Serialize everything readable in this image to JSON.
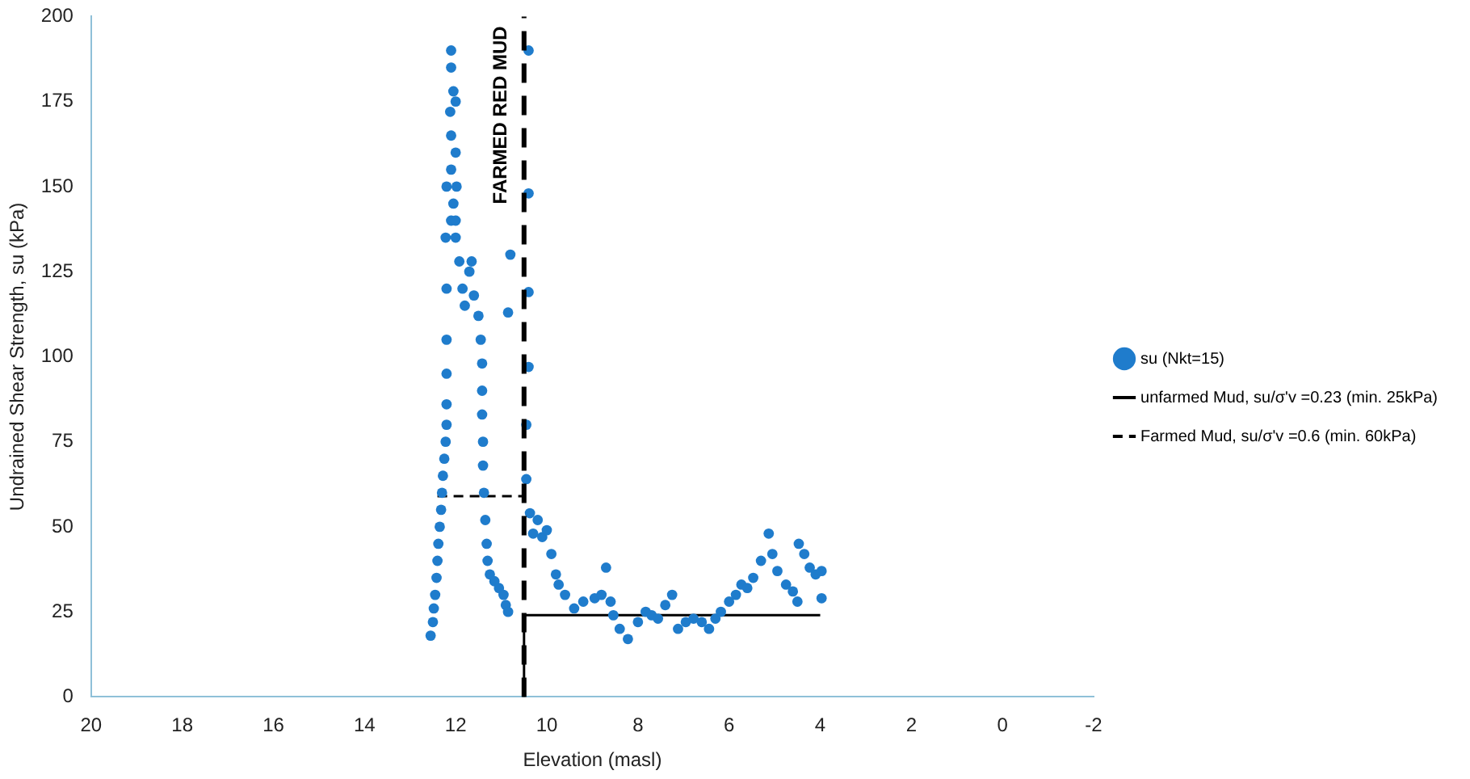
{
  "chart_data": {
    "type": "scatter",
    "xlabel": "Elevation (masl)",
    "ylabel": "Undrained Shear Strength, su (kPa)",
    "xlim": [
      20,
      -2
    ],
    "xticks": [
      20,
      18,
      16,
      14,
      12,
      10,
      8,
      6,
      4,
      2,
      0,
      -2
    ],
    "ylim": [
      0,
      200
    ],
    "yticks": [
      0,
      25,
      50,
      75,
      100,
      125,
      150,
      175,
      200
    ],
    "grid": false,
    "legend": "right",
    "marker": "circle",
    "series": [
      {
        "name": "su (Nkt=15)",
        "color": "#1f7ccc",
        "x": [
          12.55,
          12.5,
          12.48,
          12.45,
          12.42,
          12.4,
          12.38,
          12.35,
          12.32,
          12.3,
          12.28,
          12.25,
          12.22,
          12.2,
          12.2,
          12.2,
          12.2,
          12.2,
          12.22,
          12.2,
          12.1,
          12.05,
          12.1,
          12.1,
          12.12,
          12.05,
          12.1,
          12.1,
          12.0,
          12.0,
          11.98,
          12.0,
          12.0,
          11.92,
          11.85,
          11.8,
          11.7,
          11.65,
          11.6,
          11.5,
          11.45,
          11.42,
          11.42,
          11.42,
          11.4,
          11.4,
          11.38,
          11.35,
          11.32,
          11.3,
          11.25,
          11.15,
          11.05,
          10.95,
          10.9,
          10.85,
          10.8,
          10.85,
          10.4,
          10.4,
          10.4,
          10.4,
          10.45,
          10.45,
          10.37,
          10.3,
          10.2,
          10.1,
          10.0,
          9.9,
          9.8,
          9.74,
          9.6,
          9.4,
          9.2,
          8.95,
          8.8,
          8.7,
          8.6,
          8.54,
          8.4,
          8.22,
          8.0,
          7.83,
          7.7,
          7.56,
          7.4,
          7.25,
          7.12,
          6.95,
          6.78,
          6.6,
          6.44,
          6.3,
          6.18,
          6.0,
          5.85,
          5.73,
          5.6,
          5.47,
          5.3,
          5.13,
          5.05,
          4.94,
          4.75,
          4.6,
          4.5,
          4.47,
          4.35,
          4.23,
          4.1,
          3.97,
          3.97
        ],
        "values": [
          18,
          22,
          26,
          30,
          35,
          40,
          45,
          50,
          55,
          60,
          65,
          70,
          75,
          80,
          86,
          95,
          105,
          120,
          135,
          150,
          140,
          145,
          155,
          165,
          172,
          178,
          185,
          190,
          175,
          160,
          150,
          140,
          135,
          128,
          120,
          115,
          125,
          128,
          118,
          112,
          105,
          98,
          90,
          83,
          75,
          68,
          60,
          52,
          45,
          40,
          36,
          34,
          32,
          30,
          27,
          25,
          130,
          113,
          190,
          148,
          119,
          97,
          80,
          64,
          54,
          48,
          52,
          47,
          49,
          42,
          36,
          33,
          30,
          26,
          28,
          29,
          30,
          38,
          28,
          24,
          20,
          17,
          22,
          25,
          24,
          23,
          27,
          30,
          20,
          22,
          23,
          22,
          20,
          23,
          25,
          28,
          30,
          33,
          32,
          35,
          40,
          48,
          42,
          37,
          33,
          31,
          28,
          45,
          42,
          38,
          36,
          37,
          29
        ]
      },
      {
        "name": "unfarmed Mud, su/σ'v =0.23 (min. 25kPa)",
        "color": "#000000",
        "type": "line",
        "line_style": "solid",
        "marker": "none",
        "x": [
          10.5,
          10.5,
          4
        ],
        "values": [
          0,
          24,
          24
        ]
      },
      {
        "name": "Farmed Mud, su/σ'v =0.6 (min. 60kPa)",
        "color": "#000000",
        "type": "line",
        "line_style": "dashed",
        "marker": "none",
        "x": [
          12.4,
          10.5
        ],
        "values": [
          59,
          59
        ]
      }
    ],
    "ref_lines": [
      {
        "axis": "x",
        "value": 10.5,
        "label": "FARMED RED MUD",
        "color": "#000000",
        "line_style": "dashed"
      }
    ]
  }
}
